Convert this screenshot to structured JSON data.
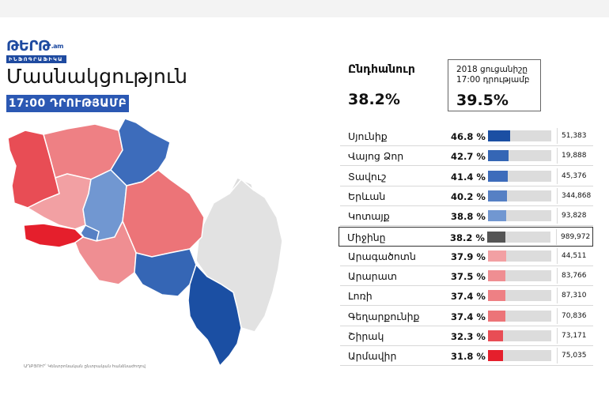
{
  "brand": {
    "logo": "ԹԵՐԹ",
    "logo_suffix": ".am",
    "subtitle": "ԻՆՖՈԳՐԱՖԻԿԱ"
  },
  "title": "Մասնակցություն",
  "time_badge": "17:00 ԴՐՈՒԹՅԱՄԲ",
  "overall": {
    "label": "Ընդհանուր",
    "value": "38.2%"
  },
  "previous": {
    "label_line1": "2018 ցուցանիշը",
    "label_line2": "17:00 դրությամբ",
    "value": "39.5%"
  },
  "caption": "ԱՂԲՅՈՒՐ՝ Կենտրոնական ընտրական հանձնաժողով",
  "colors": {
    "brand": "#1e4aa0",
    "badge": "#2b58b3",
    "bar_track": "#dcdcdc",
    "national": "#555555"
  },
  "regions": [
    {
      "name": "Սյունիք",
      "pct_label": "46.8 %",
      "value": 46.8,
      "count": "51,383",
      "color": "#1b4fa3"
    },
    {
      "name": "Վայոց Ձոր",
      "pct_label": "42.7 %",
      "value": 42.7,
      "count": "19,888",
      "color": "#3566b5"
    },
    {
      "name": "Տավուշ",
      "pct_label": "41.4 %",
      "value": 41.4,
      "count": "45,376",
      "color": "#3d6cbb"
    },
    {
      "name": "Երևան",
      "pct_label": "40.2 %",
      "value": 40.2,
      "count": "344,868",
      "color": "#5680c4"
    },
    {
      "name": "Կոտայք",
      "pct_label": "38.8 %",
      "value": 38.8,
      "count": "93,828",
      "color": "#7197d1"
    },
    {
      "name": "Միջինը",
      "pct_label": "38.2 %",
      "value": 38.2,
      "count": "989,972",
      "color": "#555555",
      "highlight": true
    },
    {
      "name": "Արագածոտն",
      "pct_label": "37.9 %",
      "value": 37.9,
      "count": "44,511",
      "color": "#f2a0a3"
    },
    {
      "name": "Արարատ",
      "pct_label": "37.5 %",
      "value": 37.5,
      "count": "83,766",
      "color": "#ef8e92"
    },
    {
      "name": "Լոռի",
      "pct_label": "37.4 %",
      "value": 37.4,
      "count": "87,310",
      "color": "#ee8084"
    },
    {
      "name": "Գեղարքունիք",
      "pct_label": "37.4 %",
      "value": 37.4,
      "count": "70,836",
      "color": "#ec7478"
    },
    {
      "name": "Շիրակ",
      "pct_label": "32.3 %",
      "value": 32.3,
      "count": "73,171",
      "color": "#e84d55"
    },
    {
      "name": "Արմավիր",
      "pct_label": "31.8 %",
      "value": 31.8,
      "count": "75,035",
      "color": "#e51f2c"
    }
  ]
}
